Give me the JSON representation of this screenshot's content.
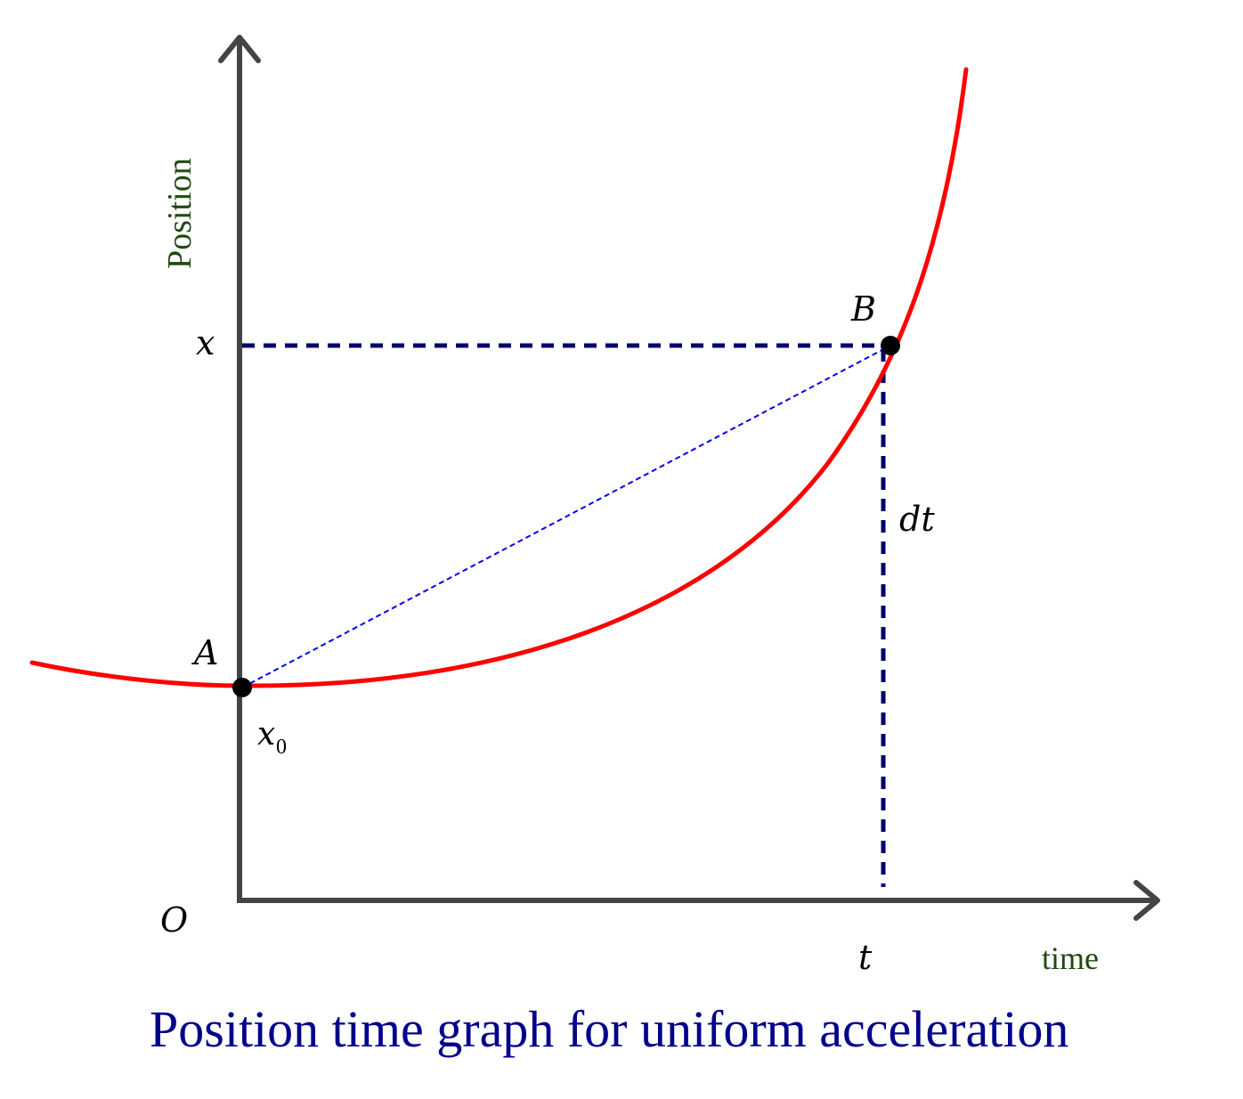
{
  "diagram": {
    "title": "Position time graph for uniform acceleration",
    "y_axis_label": "Position",
    "x_axis_label": "time",
    "origin_label": "O",
    "x_level_label": "x",
    "t_label": "t",
    "dt_label": "dt",
    "x0_label": {
      "base": "x",
      "subscript": "0"
    },
    "point_a_label": "A",
    "point_b_label": "B"
  },
  "colors": {
    "axis": "#444444",
    "curve": "#ff0000",
    "guide": "#00006b",
    "chord": "#0000ee",
    "axis_label": "#1f4a12",
    "title": "#00008b",
    "text": "#000000"
  }
}
